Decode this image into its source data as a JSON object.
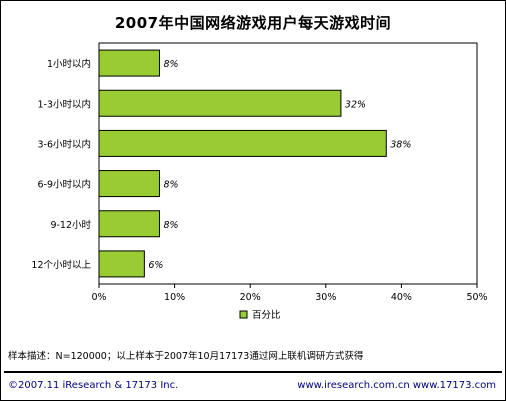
{
  "chart_data": {
    "type": "bar",
    "orientation": "horizontal",
    "title": "2007年中国网络游戏用户每天游戏时间",
    "categories": [
      "1小时以内",
      "1-3小时以内",
      "3-6小时以内",
      "6-9小时以内",
      "9-12小时",
      "12个小时以上"
    ],
    "values": [
      8,
      32,
      38,
      8,
      8,
      6
    ],
    "value_labels": [
      "8%",
      "32%",
      "38%",
      "8%",
      "8%",
      "6%"
    ],
    "series": [
      {
        "name": "百分比",
        "values": [
          8,
          32,
          38,
          8,
          8,
          6
        ]
      }
    ],
    "xlim": [
      0,
      50
    ],
    "xticks": [
      "0%",
      "10%",
      "20%",
      "30%",
      "40%",
      "50%"
    ],
    "xtick_values": [
      0,
      10,
      20,
      30,
      40,
      50
    ],
    "legend_position": "bottom-center",
    "grid": false,
    "bar_color": "#99cc33"
  },
  "note": "样本描述：N=120000；以上样本于2007年10月17173通过网上联机调研方式获得",
  "footer": {
    "left": "©2007.11 iResearch & 17173 Inc.",
    "right": "www.iresearch.com.cn  www.17173.com"
  }
}
